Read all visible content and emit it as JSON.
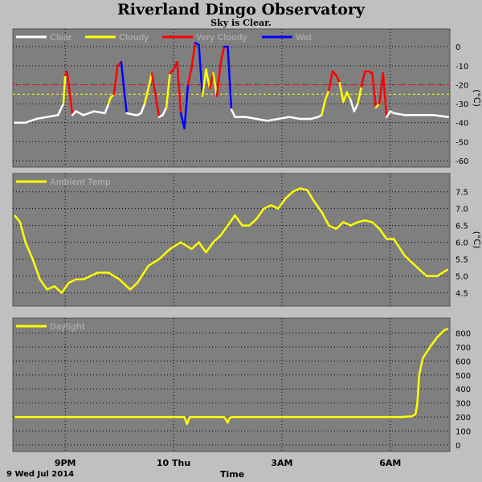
{
  "header": {
    "title": "Riverland Dingo Observatory",
    "subtitle": "Sky is Clear."
  },
  "footer": {
    "date": "9 Wed Jul 2014",
    "xlabel": "Time"
  },
  "x_ticks": [
    "9PM",
    "10 Thu",
    "3AM",
    "6AM"
  ],
  "x_tick_hours": [
    21,
    24,
    27,
    30
  ],
  "x_range_hours": [
    19.55,
    31.65
  ],
  "colors": {
    "background": "#c0c0c0",
    "plot_bg": "#7f7f7f",
    "clear": "#ffffff",
    "cloudy": "#ffff00",
    "very_cloudy": "#ff0000",
    "wet": "#0000ff",
    "ambient": "#ffff00",
    "daylight": "#ffff00",
    "threshold_cloudy": "#ffff00",
    "threshold_very_cloudy": "#ff0000"
  },
  "chart_data": [
    {
      "type": "line",
      "name": "sky",
      "legend": [
        "Clear",
        "Cloudy",
        "Very Cloudy",
        "Wet"
      ],
      "ylabel": "(°C)",
      "ylim": [
        -60,
        6
      ],
      "yticks": [
        0,
        -10,
        -20,
        -30,
        -40,
        -50,
        -60
      ],
      "thresholds": [
        {
          "value": -20,
          "color": "very_cloudy"
        },
        {
          "value": -25,
          "color": "cloudy"
        }
      ],
      "grid": true,
      "x_hours": [
        19.6,
        19.9,
        20.2,
        20.5,
        20.8,
        20.95,
        21.0,
        21.05,
        21.1,
        21.2,
        21.3,
        21.5,
        21.8,
        22.1,
        22.2,
        22.25,
        22.35,
        22.45,
        22.55,
        22.7,
        22.95,
        23.0,
        23.1,
        23.2,
        23.4,
        23.6,
        23.7,
        23.8,
        23.9,
        24.0,
        24.1,
        24.2,
        24.3,
        24.4,
        24.5,
        24.6,
        24.7,
        24.8,
        24.9,
        25.0,
        25.1,
        25.2,
        25.3,
        25.4,
        25.5,
        25.6,
        25.7,
        25.8,
        26.0,
        26.3,
        26.6,
        26.9,
        27.2,
        27.5,
        27.8,
        28.0,
        28.1,
        28.2,
        28.3,
        28.4,
        28.5,
        28.6,
        28.7,
        28.8,
        28.9,
        29.0,
        29.1,
        29.2,
        29.3,
        29.4,
        29.5,
        29.6,
        29.7,
        29.8,
        29.9,
        30.0,
        30.1,
        30.4,
        30.8,
        31.2,
        31.6
      ],
      "y": [
        -40,
        -40,
        -38,
        -37,
        -36,
        -30,
        -15,
        -13,
        -20,
        -36,
        -34,
        -36,
        -34,
        -35,
        -30,
        -27,
        -25,
        -10,
        -8,
        -35,
        -36,
        -36,
        -35,
        -30,
        -14,
        -37,
        -36,
        -32,
        -14,
        -12,
        -8,
        -35,
        -43,
        -20,
        -11,
        2,
        1,
        -26,
        -12,
        -22,
        -14,
        -26,
        -9,
        0,
        0,
        -33,
        -37,
        -37,
        -37,
        -38,
        -39,
        -38,
        -37,
        -38,
        -38,
        -37,
        -36,
        -28,
        -23,
        -13,
        -15,
        -19,
        -29,
        -24,
        -28,
        -34,
        -30,
        -21,
        -13,
        -13,
        -14,
        -32,
        -30,
        -14,
        -37,
        -34,
        -35,
        -36,
        -36,
        -36,
        -37
      ],
      "seg_class": [
        "clear",
        "clear",
        "clear",
        "clear",
        "clear",
        "cloudy",
        "very_cloudy",
        "very_cloudy",
        "very_cloudy",
        "clear",
        "clear",
        "clear",
        "clear",
        "clear",
        "cloudy",
        "cloudy",
        "very_cloudy",
        "very_cloudy",
        "wet",
        "clear",
        "clear",
        "clear",
        "clear",
        "cloudy",
        "very_cloudy",
        "clear",
        "clear",
        "cloudy",
        "very_cloudy",
        "very_cloudy",
        "very_cloudy",
        "wet",
        "wet",
        "very_cloudy",
        "very_cloudy",
        "wet",
        "wet",
        "cloudy",
        "cloudy",
        "very_cloudy",
        "cloudy",
        "very_cloudy",
        "very_cloudy",
        "wet",
        "wet",
        "clear",
        "clear",
        "clear",
        "clear",
        "clear",
        "clear",
        "clear",
        "clear",
        "clear",
        "clear",
        "clear",
        "cloudy",
        "cloudy",
        "very_cloudy",
        "very_cloudy",
        "very_cloudy",
        "cloudy",
        "cloudy",
        "cloudy",
        "clear",
        "clear",
        "cloudy",
        "very_cloudy",
        "very_cloudy",
        "very_cloudy",
        "very_cloudy",
        "cloudy",
        "very_cloudy",
        "very_cloudy",
        "clear",
        "clear",
        "clear",
        "clear",
        "clear",
        "clear"
      ]
    },
    {
      "type": "line",
      "name": "ambient",
      "legend": [
        "Ambient Temp"
      ],
      "ylabel": "(°C)",
      "ylim": [
        4.3,
        7.85
      ],
      "yticks": [
        4.5,
        5.0,
        5.5,
        6.0,
        6.5,
        7.0,
        7.5
      ],
      "grid": true,
      "x_hours": [
        19.6,
        19.75,
        19.9,
        20.1,
        20.3,
        20.5,
        20.7,
        20.9,
        21.1,
        21.3,
        21.5,
        21.7,
        21.9,
        22.2,
        22.5,
        22.8,
        23.0,
        23.3,
        23.6,
        23.9,
        24.2,
        24.5,
        24.7,
        24.9,
        25.1,
        25.3,
        25.5,
        25.7,
        25.9,
        26.1,
        26.3,
        26.5,
        26.7,
        26.9,
        27.1,
        27.3,
        27.5,
        27.7,
        27.9,
        28.1,
        28.3,
        28.5,
        28.7,
        28.9,
        29.1,
        29.3,
        29.5,
        29.7,
        29.9,
        30.1,
        30.4,
        30.7,
        31.0,
        31.3,
        31.6
      ],
      "y": [
        6.8,
        6.6,
        6.0,
        5.5,
        4.9,
        4.6,
        4.7,
        4.5,
        4.8,
        4.9,
        4.9,
        5.0,
        5.1,
        5.1,
        4.9,
        4.6,
        4.8,
        5.3,
        5.5,
        5.8,
        6.0,
        5.8,
        6.0,
        5.7,
        6.0,
        6.2,
        6.5,
        6.8,
        6.5,
        6.5,
        6.7,
        7.0,
        7.1,
        7.0,
        7.3,
        7.5,
        7.6,
        7.55,
        7.2,
        6.9,
        6.5,
        6.4,
        6.6,
        6.5,
        6.6,
        6.65,
        6.6,
        6.4,
        6.1,
        6.1,
        5.6,
        5.3,
        5.0,
        5.0,
        5.2
      ]
    },
    {
      "type": "line",
      "name": "daylight",
      "legend": [
        "Daylight"
      ],
      "ylim": [
        0,
        860
      ],
      "yticks": [
        0,
        100,
        200,
        300,
        400,
        500,
        600,
        700,
        800
      ],
      "grid": true,
      "x_hours": [
        19.6,
        20.5,
        21.5,
        22.5,
        23.5,
        24.3,
        24.37,
        24.45,
        24.6,
        25.4,
        25.5,
        25.55,
        25.65,
        26.5,
        27.5,
        28.5,
        29.5,
        30.3,
        30.6,
        30.7,
        30.75,
        30.8,
        30.9,
        31.1,
        31.3,
        31.5,
        31.6
      ],
      "y": [
        200,
        200,
        200,
        200,
        200,
        200,
        150,
        200,
        200,
        200,
        160,
        195,
        200,
        200,
        200,
        200,
        200,
        200,
        205,
        220,
        300,
        500,
        620,
        700,
        770,
        820,
        830
      ]
    }
  ]
}
